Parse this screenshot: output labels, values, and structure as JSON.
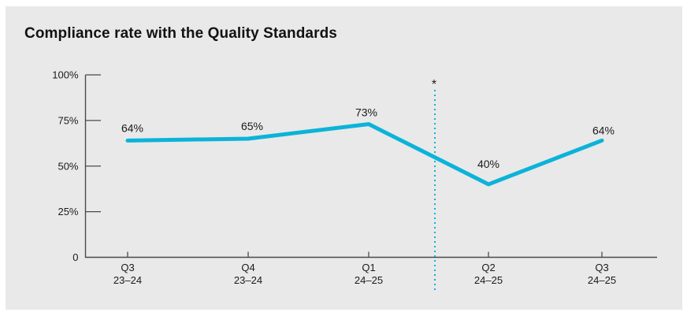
{
  "page": {
    "background": "#ffffff",
    "panel_background": "#e9e9e9"
  },
  "header": {
    "title": "Compliance rate with the Quality Standards"
  },
  "chart_data": {
    "type": "line",
    "title": "Compliance rate with the Quality Standards",
    "categories": [
      {
        "line1": "Q3",
        "line2": "23–24"
      },
      {
        "line1": "Q4",
        "line2": "23–24"
      },
      {
        "line1": "Q1",
        "line2": "24–25"
      },
      {
        "line1": "Q2",
        "line2": "24–25"
      },
      {
        "line1": "Q3",
        "line2": "24–25"
      }
    ],
    "series": [
      {
        "name": "Compliance rate",
        "values": [
          64,
          65,
          73,
          40,
          64
        ]
      }
    ],
    "data_labels": [
      "64%",
      "65%",
      "73%",
      "40%",
      "64%"
    ],
    "y_ticks": [
      {
        "label": "100%",
        "value": 100
      },
      {
        "label": "75%",
        "value": 75
      },
      {
        "label": "50%",
        "value": 50
      },
      {
        "label": "25%",
        "value": 25
      },
      {
        "label": "0",
        "value": 0
      }
    ],
    "ylim": [
      0,
      100
    ],
    "xlabel": "",
    "ylabel": "",
    "grid": false,
    "legend": "none",
    "line_color": "#0cb3d9",
    "axis_color": "#4a4a4a",
    "text_color": "#1a1a1a",
    "annotation": {
      "symbol": "*",
      "position": "between Q1 24–25 and Q2 24–25",
      "style": "dotted vertical line",
      "color": "#0cb3d9"
    }
  }
}
